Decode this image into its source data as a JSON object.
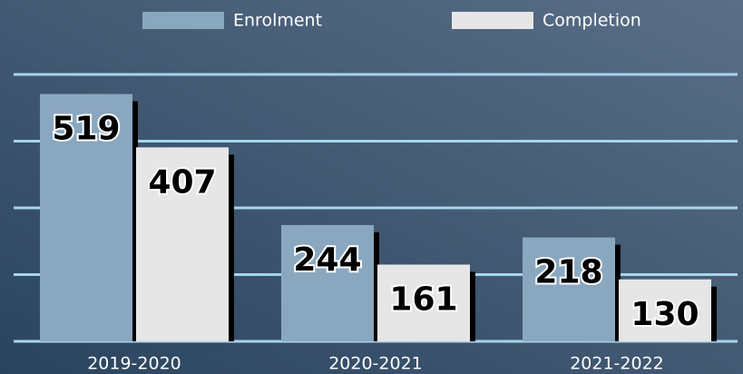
{
  "chart_data": {
    "type": "bar",
    "categories": [
      "2019-2020",
      "2020-2021",
      "2021-2022"
    ],
    "series": [
      {
        "name": "Enrolment",
        "color": "#8aa7c0",
        "values": [
          519,
          244,
          218
        ]
      },
      {
        "name": "Completion",
        "color": "#e6e6e6",
        "values": [
          407,
          161,
          130
        ]
      }
    ],
    "ylim": [
      0,
      560
    ],
    "yticks": [
      0,
      140,
      280,
      420,
      560
    ],
    "grid": true,
    "legend": "top"
  }
}
